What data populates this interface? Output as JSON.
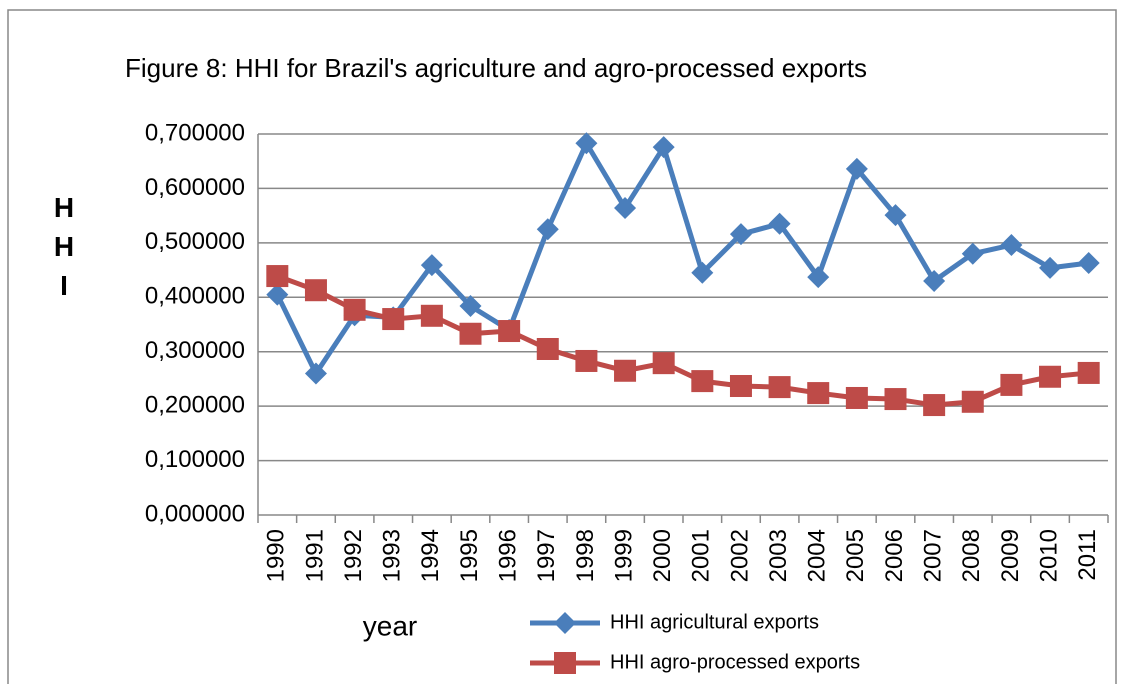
{
  "chart_data": {
    "type": "line",
    "title": "Figure 8: HHI for Brazil's agriculture and agro-processed exports",
    "x_label": "year",
    "y_label": "HHI",
    "categories": [
      "1990",
      "1991",
      "1992",
      "1993",
      "1994",
      "1995",
      "1996",
      "1997",
      "1998",
      "1999",
      "2000",
      "2001",
      "2002",
      "2003",
      "2004",
      "2005",
      "2006",
      "2007",
      "2008",
      "2009",
      "2010",
      "2011"
    ],
    "series": [
      {
        "name": "HHI agricultural exports",
        "color": "#4a7ebb",
        "marker": "diamond",
        "values": [
          0.405,
          0.26,
          0.367,
          0.363,
          0.459,
          0.384,
          0.34,
          0.525,
          0.683,
          0.564,
          0.676,
          0.445,
          0.516,
          0.535,
          0.437,
          0.636,
          0.551,
          0.43,
          0.48,
          0.496,
          0.454,
          0.463
        ]
      },
      {
        "name": "HHI agro-processed exports",
        "color": "#be4b48",
        "marker": "square",
        "values": [
          0.439,
          0.413,
          0.377,
          0.36,
          0.366,
          0.333,
          0.338,
          0.305,
          0.283,
          0.265,
          0.279,
          0.246,
          0.237,
          0.235,
          0.224,
          0.215,
          0.213,
          0.202,
          0.208,
          0.239,
          0.254,
          0.261
        ]
      }
    ],
    "ylim": [
      0,
      0.7
    ],
    "yticks": [
      {
        "value": 0,
        "label": "0,000000"
      },
      {
        "value": 0.1,
        "label": "0,100000"
      },
      {
        "value": 0.2,
        "label": "0,200000"
      },
      {
        "value": 0.3,
        "label": "0,300000"
      },
      {
        "value": 0.4,
        "label": "0,400000"
      },
      {
        "value": 0.5,
        "label": "0,500000"
      },
      {
        "value": 0.6,
        "label": "0,600000"
      },
      {
        "value": 0.7,
        "label": "0,700000"
      }
    ],
    "grid": true,
    "legend": "bottom"
  }
}
